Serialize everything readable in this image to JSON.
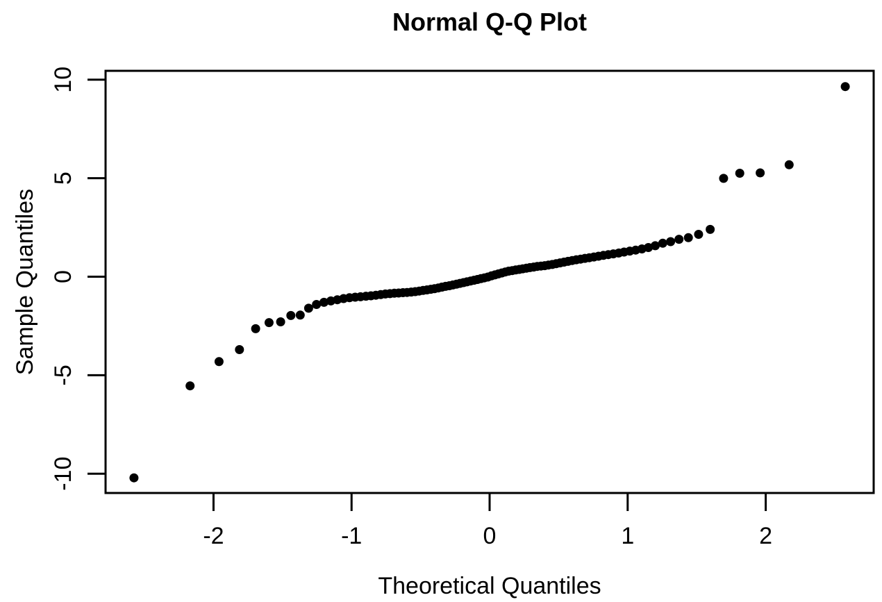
{
  "chart_data": {
    "type": "scatter",
    "title": "Normal Q-Q Plot",
    "xlabel": "Theoretical Quantiles",
    "ylabel": "Sample Quantiles",
    "xlim": [
      -2.782,
      2.782
    ],
    "ylim": [
      -10.98,
      10.45
    ],
    "xticks": [
      -2,
      -1,
      0,
      1,
      2
    ],
    "yticks": [
      -10,
      -5,
      0,
      5,
      10
    ],
    "grid": false,
    "legend": "none",
    "marker": "filled-circle",
    "marker_color": "#000000",
    "background_color": "#ffffff",
    "frame_color": "#000000",
    "n_points": 100,
    "x": [
      -2.576,
      -2.17,
      -1.96,
      -1.812,
      -1.695,
      -1.598,
      -1.514,
      -1.44,
      -1.372,
      -1.311,
      -1.254,
      -1.2,
      -1.15,
      -1.103,
      -1.058,
      -1.015,
      -0.974,
      -0.935,
      -0.896,
      -0.86,
      -0.824,
      -0.789,
      -0.755,
      -0.722,
      -0.69,
      -0.659,
      -0.628,
      -0.598,
      -0.568,
      -0.539,
      -0.51,
      -0.482,
      -0.454,
      -0.426,
      -0.399,
      -0.372,
      -0.345,
      -0.319,
      -0.292,
      -0.266,
      -0.24,
      -0.215,
      -0.189,
      -0.164,
      -0.138,
      -0.113,
      -0.088,
      -0.063,
      -0.038,
      -0.013,
      0.013,
      0.038,
      0.063,
      0.088,
      0.113,
      0.138,
      0.164,
      0.189,
      0.215,
      0.24,
      0.266,
      0.292,
      0.319,
      0.345,
      0.372,
      0.399,
      0.426,
      0.454,
      0.482,
      0.51,
      0.539,
      0.568,
      0.598,
      0.628,
      0.659,
      0.69,
      0.722,
      0.755,
      0.789,
      0.824,
      0.86,
      0.896,
      0.935,
      0.974,
      1.015,
      1.058,
      1.103,
      1.15,
      1.2,
      1.254,
      1.311,
      1.372,
      1.44,
      1.514,
      1.598,
      1.695,
      1.812,
      1.96,
      2.17,
      2.576
    ],
    "y": [
      -10.21,
      -5.54,
      -4.31,
      -3.7,
      -2.64,
      -2.33,
      -2.29,
      -1.97,
      -1.95,
      -1.6,
      -1.41,
      -1.3,
      -1.23,
      -1.17,
      -1.11,
      -1.07,
      -1.04,
      -1.02,
      -0.99,
      -0.97,
      -0.94,
      -0.91,
      -0.88,
      -0.86,
      -0.84,
      -0.83,
      -0.81,
      -0.8,
      -0.78,
      -0.76,
      -0.73,
      -0.7,
      -0.67,
      -0.64,
      -0.61,
      -0.57,
      -0.53,
      -0.49,
      -0.46,
      -0.42,
      -0.38,
      -0.34,
      -0.3,
      -0.26,
      -0.22,
      -0.18,
      -0.14,
      -0.1,
      -0.06,
      -0.02,
      0.04,
      0.09,
      0.14,
      0.19,
      0.24,
      0.28,
      0.31,
      0.34,
      0.37,
      0.4,
      0.43,
      0.46,
      0.49,
      0.52,
      0.54,
      0.56,
      0.59,
      0.62,
      0.66,
      0.7,
      0.74,
      0.78,
      0.82,
      0.86,
      0.89,
      0.93,
      0.96,
      1.0,
      1.04,
      1.08,
      1.12,
      1.16,
      1.2,
      1.25,
      1.3,
      1.35,
      1.41,
      1.48,
      1.57,
      1.7,
      1.78,
      1.9,
      1.98,
      2.15,
      2.4,
      4.99,
      5.25,
      5.27,
      5.68,
      9.65
    ]
  }
}
